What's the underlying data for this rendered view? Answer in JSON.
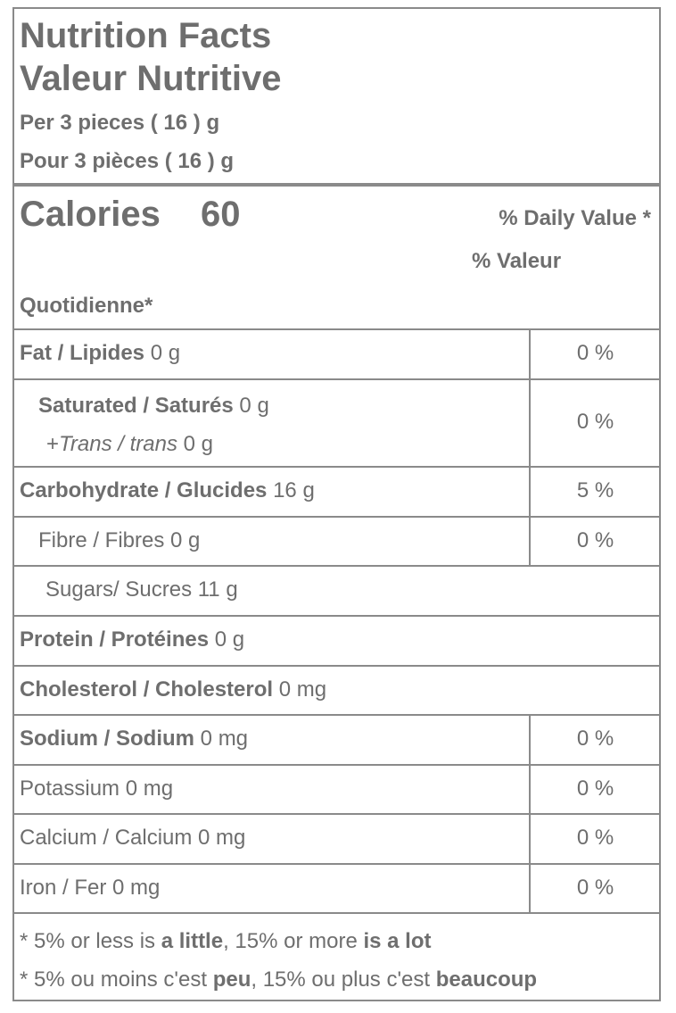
{
  "header": {
    "title": "Nutrition Facts",
    "title_fr": "Valeur Nutritive",
    "serving": "Per 3 pieces ( 16 ) g",
    "serving_fr": "Pour 3 pièces ( 16 ) g"
  },
  "calories": {
    "label": "Calories",
    "value": "60",
    "dv_header": "% Daily Value *",
    "dv_header_fr_1": "% Valeur",
    "dv_header_fr_2": "Quotidienne*"
  },
  "rows": [
    {
      "label": "Fat / Lipides",
      "amount": "0 g",
      "dv": "0 %"
    },
    {
      "label": "Saturated / Saturés",
      "amount": "0 g",
      "sub_prefix": "+",
      "sub_label": "Trans / trans",
      "sub_amount": "0 g",
      "dv": "0 %"
    },
    {
      "label": "Carbohydrate / Glucides",
      "amount": "16 g",
      "dv": "5 %"
    },
    {
      "label": "Fibre / Fibres 0 g",
      "dv": "0 %"
    },
    {
      "label": "Sugars/ Sucres 11 g"
    },
    {
      "label": "Protein / Protéines",
      "amount": "0 g"
    },
    {
      "label": "Cholesterol / Cholesterol",
      "amount": "0 mg"
    },
    {
      "label": "Sodium / Sodium",
      "amount": "0 mg",
      "dv": "0 %"
    },
    {
      "label": "Potassium 0 mg",
      "dv": "0 %"
    },
    {
      "label": "Calcium / Calcium 0 mg",
      "dv": "0 %"
    },
    {
      "label": "Iron / Fer 0 mg",
      "dv": "0 %"
    }
  ],
  "footer": {
    "line1": [
      "* 5% or less is ",
      "a little",
      ", 15% or more ",
      "is a lot"
    ],
    "line2": [
      "* 5% ou moins c'est ",
      "peu",
      ", 15% ou plus c'est ",
      "beaucoup"
    ]
  }
}
